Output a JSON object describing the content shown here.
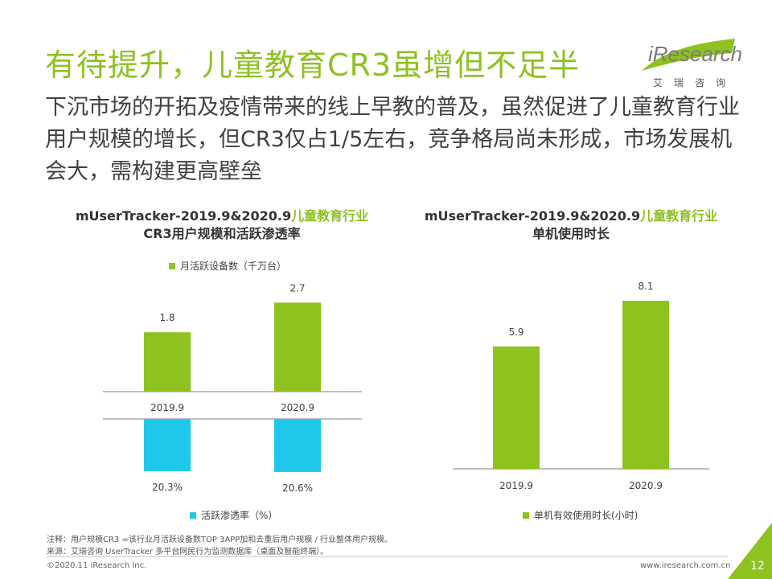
{
  "header": {
    "title": "有待提升，儿童教育CR3虽增但不足半",
    "subtitle": "下沉市场的开拓及疫情带来的线上早教的普及，虽然促进了儿童教育行业用户规模的增长，但CR3仅占1/5左右，竞争格局尚未形成，市场发展机会大，需构建更高壁垒"
  },
  "logo": {
    "text": "iResearch",
    "cn": "艾瑞咨询"
  },
  "chart_left_title": {
    "prefix": "mUserTracker-2019.9&2020.9",
    "highlight": "儿童教育行业",
    "line2": "CR3用户规模和活跃渗透率"
  },
  "chart_right_title": {
    "prefix": "mUserTracker-2019.9&2020.9",
    "highlight": "儿童教育行业",
    "line2": "单机使用时长"
  },
  "colors": {
    "green": "#8dc21f",
    "blue": "#1fc8ea",
    "axis": "#7f7f7f",
    "text": "#404040"
  },
  "chart_data": [
    {
      "type": "bar",
      "title": "mUserTracker-2019.9&2020.9儿童教育行业CR3用户规模和活跃渗透率",
      "categories": [
        "2019.9",
        "2020.9"
      ],
      "series": [
        {
          "name": "月活跃设备数（千万台）",
          "values": [
            1.8,
            2.7
          ],
          "labels": [
            "1.8",
            "2.7"
          ],
          "color": "#8dc21f"
        },
        {
          "name": "活跃渗透率（%）",
          "values": [
            20.3,
            20.6
          ],
          "labels": [
            "20.3%",
            "20.6%"
          ],
          "color": "#1fc8ea",
          "direction": "down"
        }
      ],
      "legend": "top"
    },
    {
      "type": "bar",
      "title": "mUserTracker-2019.9&2020.9儿童教育行业单机使用时长",
      "categories": [
        "2019.9",
        "2020.9"
      ],
      "series": [
        {
          "name": "单机有效使用时长(小时)",
          "values": [
            5.9,
            8.1
          ],
          "labels": [
            "5.9",
            "8.1"
          ],
          "color": "#8dc21f"
        }
      ],
      "legend": "bottom"
    }
  ],
  "notes": {
    "line1": "注释：用户规模CR3 =该行业月活跃设备数TOP 3APP加和去重后用户规模 / 行业整体用户规模。",
    "line2": "来源：艾瑞咨询 UserTracker 多平台网民行为监测数据库（桌面及智能终端）。"
  },
  "footer": {
    "copyright": "©2020.11 iResearch Inc.",
    "url": "www.iresearch.com.cn",
    "page": "12"
  }
}
